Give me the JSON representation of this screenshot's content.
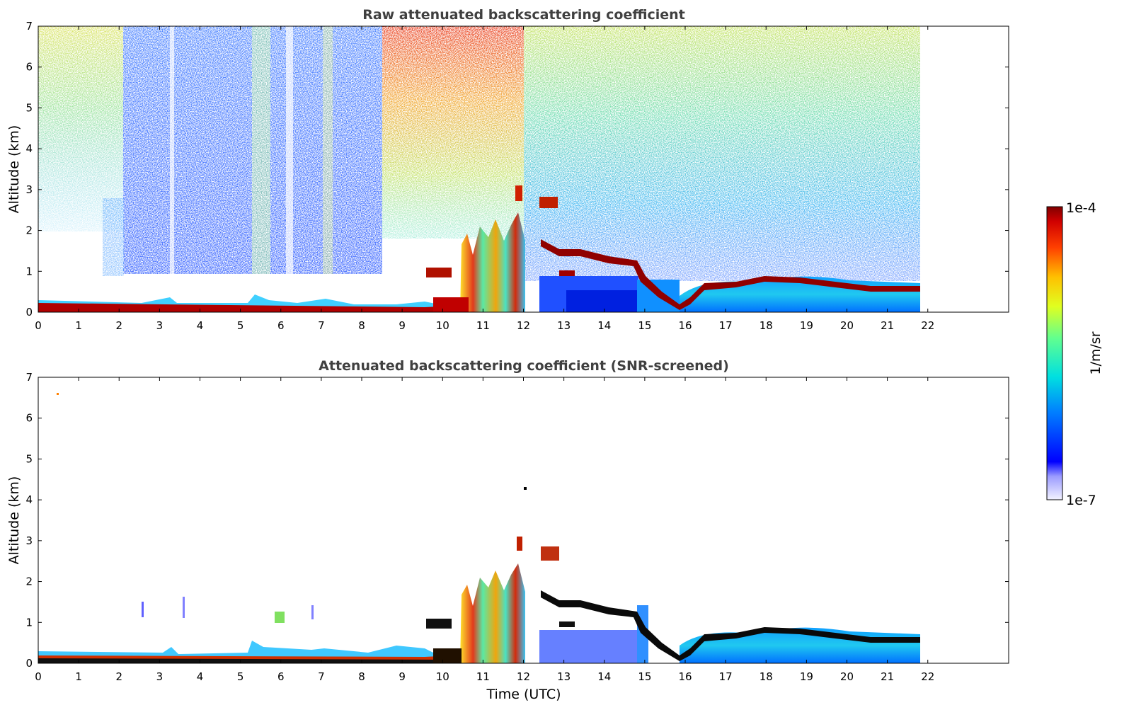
{
  "chart_data": [
    {
      "type": "heatmap",
      "title": "Raw attenuated backscattering coefficient",
      "xlabel": "",
      "ylabel": "Altitude (km)",
      "xlim": [
        0,
        24
      ],
      "ylim": [
        0,
        7
      ],
      "xticks": [
        "0",
        "1",
        "2",
        "3",
        "4",
        "5",
        "6",
        "7",
        "8",
        "9",
        "10",
        "11",
        "12",
        "13",
        "14",
        "15",
        "16",
        "17",
        "18",
        "19",
        "20",
        "21",
        "22"
      ],
      "yticks": [
        "0",
        "1",
        "2",
        "3",
        "4",
        "5",
        "6",
        "7"
      ],
      "data_extent_hours": 21.8,
      "features": [
        {
          "name": "surface aerosol layer",
          "x": [
            0,
            9.5
          ],
          "y_top_km": 0.2,
          "level": "1e-4"
        },
        {
          "name": "noise, low values",
          "x": [
            2.1,
            8.5
          ],
          "y": [
            0.8,
            7
          ],
          "level": "low (blue)"
        },
        {
          "name": "noise, high values",
          "x": [
            8.5,
            12
          ],
          "y": [
            1.5,
            7
          ],
          "level": "high (yellow-red)"
        },
        {
          "name": "convective clouds",
          "x": [
            10.4,
            12.0
          ],
          "y": [
            0,
            3.0
          ],
          "level": "1e-4"
        },
        {
          "name": "elevated cloud layer",
          "x": [
            12.5,
            15
          ],
          "y": [
            0.9,
            2.7
          ],
          "level": "1e-4"
        },
        {
          "name": "boundary layer top",
          "x": [
            15.5,
            21.8
          ],
          "y": [
            0.6,
            0.9
          ],
          "level": "1e-4"
        },
        {
          "name": "boundary layer",
          "x": [
            16,
            21.8
          ],
          "y": [
            0,
            0.8
          ],
          "level": "1e-6"
        }
      ]
    },
    {
      "type": "heatmap",
      "title": "Attenuated backscattering coefficient (SNR-screened)",
      "xlabel": "Time (UTC)",
      "ylabel": "Altitude (km)",
      "xlim": [
        0,
        24
      ],
      "ylim": [
        0,
        7
      ],
      "xticks": [
        "0",
        "1",
        "2",
        "3",
        "4",
        "5",
        "6",
        "7",
        "8",
        "9",
        "10",
        "11",
        "12",
        "13",
        "14",
        "15",
        "16",
        "17",
        "18",
        "19",
        "20",
        "21",
        "22"
      ],
      "yticks": [
        "0",
        "1",
        "2",
        "3",
        "4",
        "5",
        "6",
        "7"
      ],
      "data_extent_hours": 21.8,
      "features": [
        {
          "name": "surface aerosol layer",
          "x": [
            0,
            9.5
          ],
          "y_top_km": 0.25,
          "level": "1e-4"
        },
        {
          "name": "convective clouds",
          "x": [
            10.4,
            12.0
          ],
          "y": [
            0,
            3.0
          ],
          "level": "1e-4"
        },
        {
          "name": "elevated cloud layer",
          "x": [
            12.5,
            15
          ],
          "y": [
            0.9,
            2.7
          ],
          "level": "1e-4"
        },
        {
          "name": "boundary layer top",
          "x": [
            15.5,
            21.8
          ],
          "y": [
            0.6,
            0.9
          ],
          "level": "1e-4"
        },
        {
          "name": "boundary layer",
          "x": [
            12.3,
            21.8
          ],
          "y": [
            0,
            0.8
          ],
          "level": "1e-6"
        }
      ]
    }
  ],
  "colorbar": {
    "label": "1/m/sr",
    "max_label": "1e-4",
    "min_label": "1e-7",
    "scale": "log",
    "colormap": "jet"
  }
}
